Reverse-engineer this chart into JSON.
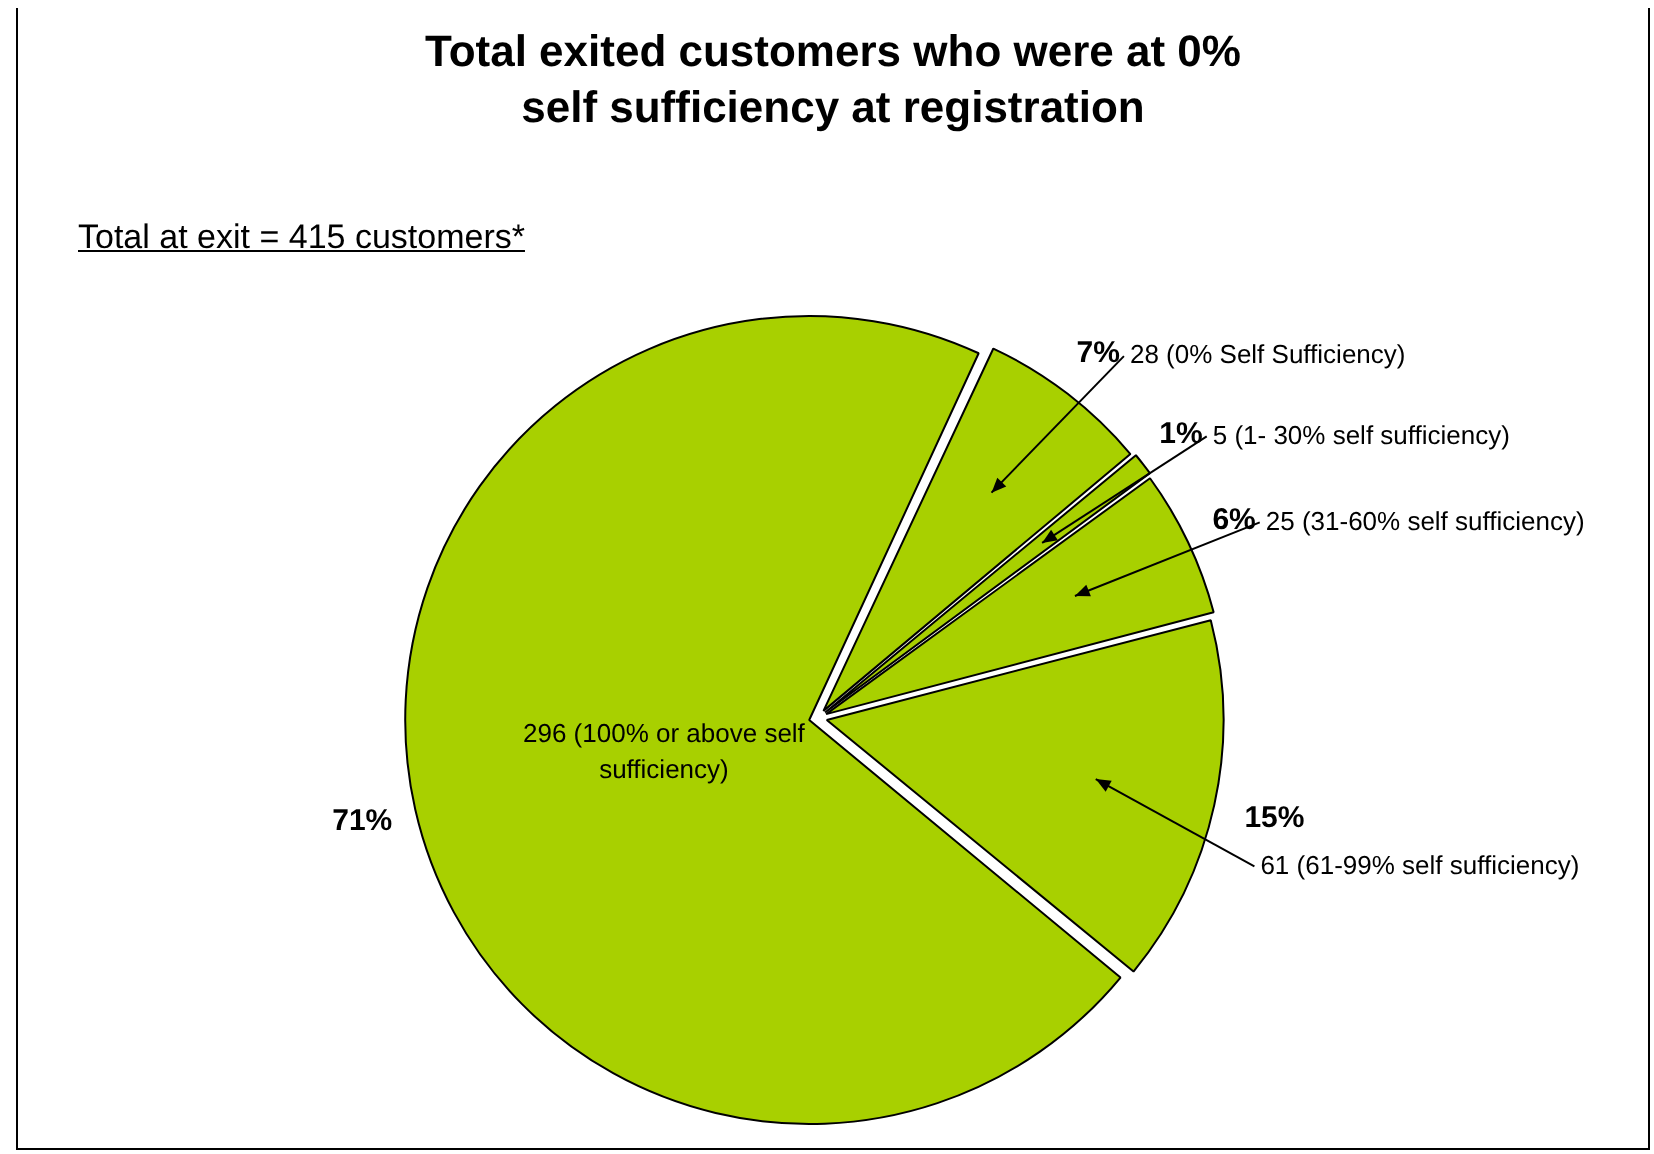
{
  "chart_data": {
    "type": "pie",
    "title": "Total exited customers who were at 0% self sufficiency at registration",
    "subtitle": "Total at exit = 415 customers*",
    "categories": [
      "28 (0% Self Sufficiency)",
      "5 (1- 30% self sufficiency)",
      "25 (31-60% self sufficiency)",
      "61 (61-99% self sufficiency)",
      "296 (100% or above self sufficiency)"
    ],
    "values": [
      7,
      1,
      6,
      15,
      71
    ],
    "value_labels": [
      "7%",
      "1%",
      "6%",
      "15%",
      "71%"
    ],
    "colors": [
      "#a8d000",
      "#a8d000",
      "#a8d000",
      "#a8d000",
      "#a8d000"
    ],
    "legend": false
  }
}
